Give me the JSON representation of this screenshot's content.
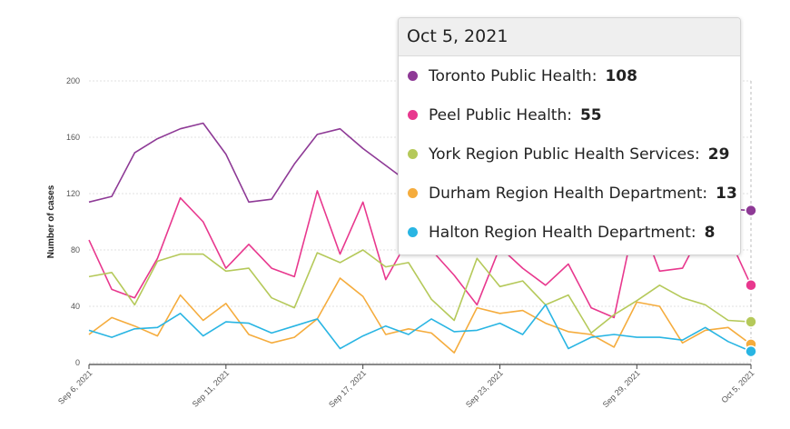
{
  "chart_data": {
    "type": "line",
    "ylabel": "Number of cases",
    "ylim": [
      0,
      200
    ],
    "yticks": [
      0,
      40,
      80,
      120,
      160,
      200
    ],
    "x": [
      "Sep 6, 2021",
      "Sep 7, 2021",
      "Sep 8, 2021",
      "Sep 9, 2021",
      "Sep 10, 2021",
      "Sep 11, 2021",
      "Sep 12, 2021",
      "Sep 13, 2021",
      "Sep 14, 2021",
      "Sep 15, 2021",
      "Sep 16, 2021",
      "Sep 17, 2021",
      "Sep 18, 2021",
      "Sep 19, 2021",
      "Sep 20, 2021",
      "Sep 21, 2021",
      "Sep 22, 2021",
      "Sep 23, 2021",
      "Sep 24, 2021",
      "Sep 25, 2021",
      "Sep 26, 2021",
      "Sep 27, 2021",
      "Sep 28, 2021",
      "Sep 29, 2021",
      "Sep 30, 2021",
      "Oct 1, 2021",
      "Oct 2, 2021",
      "Oct 3, 2021",
      "Oct 4, 2021",
      "Oct 5, 2021"
    ],
    "xtick_labels": [
      "Sep 6, 2021",
      "Sep 11, 2021",
      "Sep 17, 2021",
      "Sep 23, 2021",
      "Sep 29, 2021",
      "Oct 5, 2021"
    ],
    "xtick_positions": [
      "Sep 6, 2021",
      "Sep 12, 2021",
      "Sep 18, 2021",
      "Sep 24, 2021",
      "Sep 30, 2021",
      "Oct 5, 2021"
    ],
    "series": [
      {
        "name": "Toronto Public Health",
        "color": "#8e3a96",
        "values": [
          114,
          118,
          149,
          159,
          166,
          170,
          148,
          114,
          116,
          141,
          162,
          166,
          152,
          140,
          128,
          122,
          112,
          115,
          121,
          116,
          113,
          111,
          113,
          116,
          121,
          124,
          122,
          120,
          109,
          108
        ]
      },
      {
        "name": "Peel Public Health",
        "color": "#e8388e",
        "values": [
          87,
          52,
          46,
          74,
          117,
          100,
          67,
          84,
          67,
          61,
          122,
          77,
          114,
          59,
          88,
          80,
          62,
          41,
          82,
          67,
          55,
          70,
          39,
          32,
          108,
          65,
          67,
          98,
          90,
          55
        ]
      },
      {
        "name": "York Region Public Health Services",
        "color": "#b5c95a",
        "values": [
          61,
          64,
          41,
          72,
          77,
          77,
          65,
          67,
          46,
          39,
          78,
          71,
          80,
          68,
          71,
          45,
          30,
          74,
          54,
          58,
          41,
          48,
          21,
          34,
          44,
          55,
          46,
          41,
          30,
          29
        ]
      },
      {
        "name": "Durham Region Health Department",
        "color": "#f5ac3d",
        "values": [
          20,
          32,
          26,
          19,
          48,
          30,
          42,
          20,
          14,
          18,
          31,
          60,
          47,
          20,
          24,
          21,
          7,
          39,
          35,
          37,
          28,
          22,
          20,
          11,
          43,
          40,
          14,
          23,
          25,
          13
        ]
      },
      {
        "name": "Halton Region Health Department",
        "color": "#29b5e3",
        "values": [
          23,
          18,
          24,
          25,
          35,
          19,
          29,
          28,
          21,
          26,
          31,
          10,
          19,
          26,
          20,
          31,
          22,
          23,
          28,
          20,
          41,
          10,
          18,
          20,
          18,
          18,
          16,
          25,
          15,
          8
        ]
      }
    ]
  },
  "tooltip": {
    "date": "Oct 5, 2021",
    "items": [
      {
        "label": "Toronto Public Health:",
        "value": "108",
        "color": "#8e3a96"
      },
      {
        "label": "Peel Public Health:",
        "value": "55",
        "color": "#e8388e"
      },
      {
        "label": "York Region Public Health Services:",
        "value": "29",
        "color": "#b5c95a"
      },
      {
        "label": "Durham Region Health Department:",
        "value": "13",
        "color": "#f5ac3d"
      },
      {
        "label": "Halton Region Health Department:",
        "value": "8",
        "color": "#29b5e3"
      }
    ]
  }
}
